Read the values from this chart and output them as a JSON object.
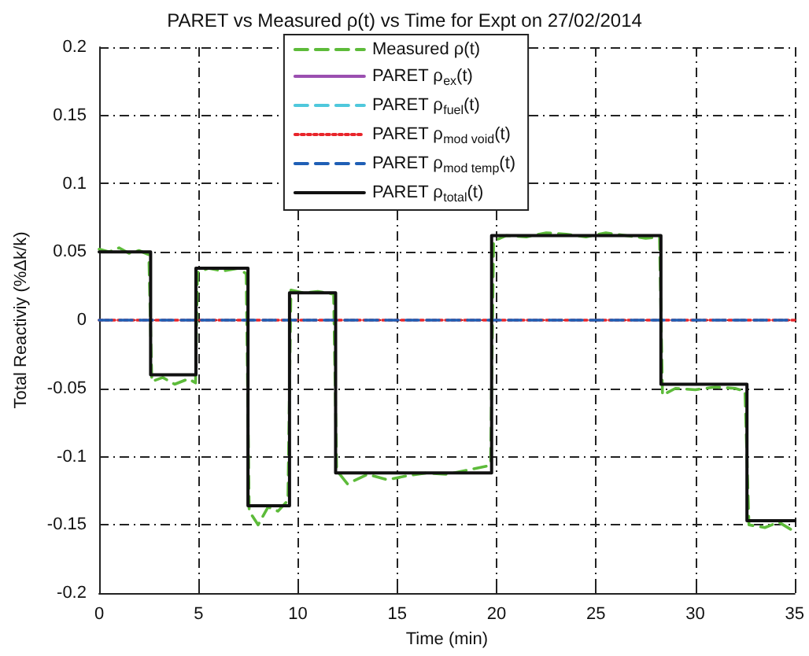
{
  "chart_data": {
    "type": "line",
    "title": "PARET vs Measured ρ(t) vs Time for Expt on 27/02/2014",
    "xlabel": "Time (min)",
    "ylabel": "Total Reactiviy (%Δk/k)",
    "xlim": [
      0,
      35
    ],
    "xticks": [
      0,
      5,
      10,
      15,
      20,
      25,
      30,
      35
    ],
    "ylim": [
      -0.2,
      0.2
    ],
    "yticks": [
      -0.2,
      -0.15,
      -0.1,
      -0.05,
      0,
      0.05,
      0.1,
      0.15,
      0.2
    ],
    "grid": true,
    "legend": "top",
    "marker": "none",
    "series": [
      {
        "name": "Measured ρ(t)",
        "color": "#5dbb3a",
        "line_style": "dashed",
        "x": [
          0,
          0.5,
          1,
          1.5,
          2,
          2.5,
          2.65,
          3.2,
          3.8,
          4.5,
          4.85,
          4.95,
          5.5,
          6.2,
          7,
          7.4,
          7.55,
          8,
          8.5,
          9,
          9.5,
          9.65,
          10.3,
          11,
          11.8,
          11.95,
          12.5,
          13.5,
          14.5,
          15.5,
          16.5,
          17.5,
          18.5,
          19.5,
          19.7,
          19.85,
          20.5,
          21.5,
          22.5,
          23.5,
          24.5,
          25.5,
          26.5,
          27.5,
          28.2,
          28.35,
          29,
          30,
          31,
          32,
          32.5,
          32.7,
          33.5,
          34.2,
          35
        ],
        "values": [
          0.052,
          0.05,
          0.053,
          0.049,
          0.051,
          0.048,
          -0.045,
          -0.042,
          -0.047,
          -0.043,
          -0.046,
          0.035,
          0.038,
          0.036,
          0.038,
          0.034,
          -0.14,
          -0.15,
          -0.137,
          -0.14,
          -0.132,
          0.022,
          0.02,
          0.021,
          0.019,
          -0.11,
          -0.12,
          -0.113,
          -0.117,
          -0.114,
          -0.112,
          -0.113,
          -0.11,
          -0.107,
          -0.105,
          0.058,
          0.062,
          0.061,
          0.064,
          0.063,
          0.061,
          0.064,
          0.062,
          0.06,
          0.061,
          -0.055,
          -0.05,
          -0.051,
          -0.049,
          -0.05,
          -0.052,
          -0.15,
          -0.152,
          -0.148,
          -0.155
        ]
      },
      {
        "name": "PARET ρ$_{ex}$(t)",
        "color": "#9b4fb0",
        "line_style": "solid"
      },
      {
        "name": "PARET ρ$_{fuel}$(t)",
        "color": "#4fc8dc",
        "line_style": "dashed"
      },
      {
        "name": "PARET ρ$_{mod void}$(t)",
        "color": "#e8242a",
        "line_style": "dotted",
        "x": [
          0,
          35
        ],
        "values": [
          0,
          0
        ]
      },
      {
        "name": "PARET ρ$_{mod temp}$(t)",
        "color": "#1f5fb5",
        "line_style": "dashed",
        "x": [
          0,
          35
        ],
        "values": [
          0,
          0
        ]
      },
      {
        "name": "PARET ρ$_{total}$(t)",
        "type": "step",
        "color": "#111111",
        "line_style": "solid",
        "x": [
          0,
          2.59,
          4.87,
          7.49,
          9.58,
          11.9,
          19.75,
          28.27,
          32.6,
          35
        ],
        "values": [
          0.05,
          -0.04,
          0.038,
          -0.136,
          0.02,
          -0.112,
          0.062,
          -0.047,
          -0.147,
          -0.147
        ]
      }
    ]
  }
}
